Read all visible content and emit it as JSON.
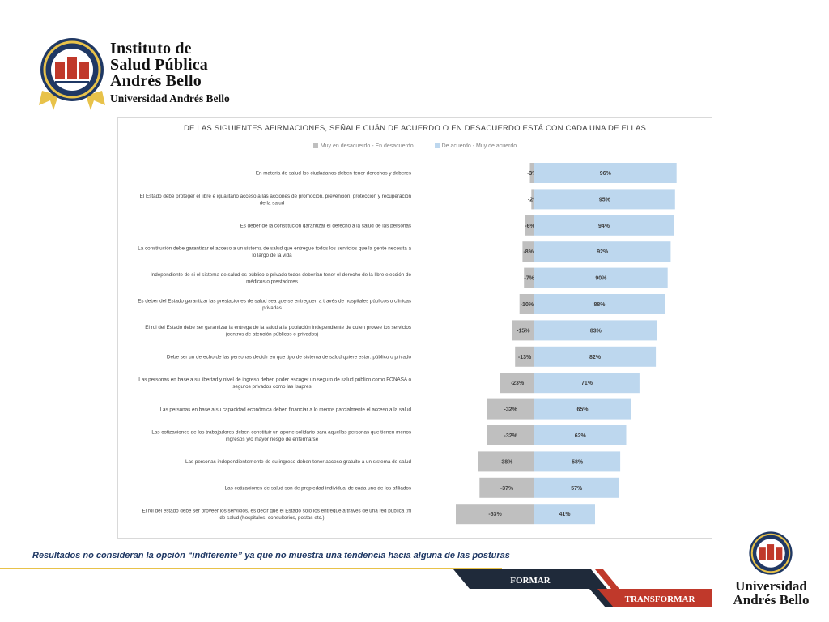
{
  "header": {
    "logo_lines": [
      "Instituto de",
      "Salud Pública",
      "Andrés Bello"
    ],
    "logo_sub": "Universidad Andrés Bello"
  },
  "colors": {
    "negative_bar": "#bfbfbf",
    "positive_bar": "#bdd7ee",
    "navy": "#1f3864",
    "red": "#c0392b",
    "gold": "#e8c24a"
  },
  "chart_data": {
    "type": "bar",
    "orientation": "horizontal-diverging",
    "title": "DE LAS SIGUIENTES AFIRMACIONES, SEÑALE CUÁN DE ACUERDO O EN DESACUERDO ESTÁ CON CADA UNA DE ELLAS",
    "legend_position": "top",
    "grid": false,
    "series": [
      {
        "name": "Muy en desacuerdo - En desacuerdo",
        "values": [
          -3,
          -2,
          -6,
          -8,
          -7,
          -10,
          -15,
          -13,
          -23,
          -32,
          -32,
          -38,
          -37,
          -53
        ]
      },
      {
        "name": "De acuerdo - Muy de acuerdo",
        "values": [
          96,
          95,
          94,
          92,
          90,
          88,
          83,
          82,
          71,
          65,
          62,
          58,
          57,
          41
        ]
      }
    ],
    "categories": [
      [
        "En materia de salud los ciudadanos deben tener derechos y deberes"
      ],
      [
        "El Estado debe proteger el libre e igualitario acceso a las acciones de promoción, prevención, protección y recuperación",
        "de la salud"
      ],
      [
        "Es deber de la constitución garantizar el derecho a la salud de las personas"
      ],
      [
        "La constitución debe garantizar  el acceso a un sistema de salud que entregue todos los servicios que la gente necesita a",
        "lo largo de la vida"
      ],
      [
        "Independiente de si el sistema de salud es público o privado todos deberían tener el derecho de la libre elección de",
        "médicos o prestadores"
      ],
      [
        "Es deber del Estado garantizar las prestaciones de salud sea que se entreguen a través de hospitales  públicos o clínicas",
        "privadas"
      ],
      [
        "El rol del Estado debe ser garantizar la entrega de la salud a la población independiente de quien provee los servicios",
        "(centros de atención públicos o privados)"
      ],
      [
        "Debe ser un derecho de las personas decidir en que tipo de sistema de salud quiere estar: público o privado"
      ],
      [
        "Las personas en base a su libertad y nivel de ingreso deben poder  escoger un seguro de salud público como FONASA o",
        "seguros privados como las Isapres"
      ],
      [
        "Las personas en base a su capacidad económica deben financiar a lo menos parcialmente el acceso a la salud"
      ],
      [
        "Las cotizaciones de los trabajadores deben constituir un aporte solidario para aquellas personas que tienen menos",
        "ingresos y/o mayor riesgo de enfermarse"
      ],
      [
        "Las personas independientemente de su ingreso deben tener acceso gratuito a un sistema de salud"
      ],
      [
        "Las cotizaciones de salud son de propiedad individual de cada uno de los afiliados"
      ],
      [
        "El rol del estado debe ser proveer los servicios, es decir que el Estado sólo los entregue a través de una red pública (ni",
        "de salud (hospitales, consultorios, postas etc.)"
      ]
    ]
  },
  "footer": {
    "note": "Resultados no consideran la opción “indiferente” ya que no muestra una tendencia hacia alguna de las posturas",
    "ribbon_top": "FORMAR",
    "ribbon_bottom": "TRANSFORMAR",
    "logo_lines": [
      "Universidad",
      "Andrés Bello"
    ]
  }
}
